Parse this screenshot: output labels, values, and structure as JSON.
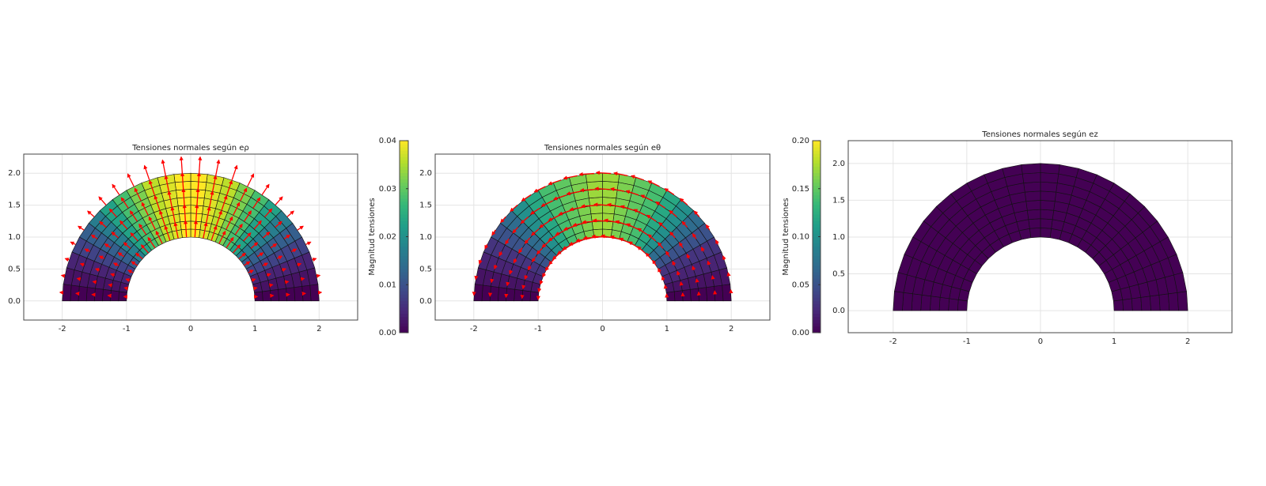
{
  "chart_data": [
    {
      "type": "mesh",
      "title": "Tensiones normales según eρ",
      "xlim": [
        -2.6,
        2.6
      ],
      "ylim": [
        -0.3,
        2.3
      ],
      "xticks": [
        -2,
        -1,
        0,
        1,
        2
      ],
      "yticks": [
        {
          "value": 0,
          "label": "0.0"
        },
        0.5,
        {
          "value": 1,
          "label": "1.0"
        },
        1.5,
        {
          "value": 2,
          "label": "2.0"
        }
      ],
      "grid": true,
      "colormap": "viridis",
      "clim": [
        0,
        0.04
      ],
      "colorbar_label": "Magnitud tensiones",
      "colorbar_ticks": [
        {
          "value": 0,
          "label": "0.00"
        },
        0.01,
        0.02,
        0.03,
        {
          "value": 0.04,
          "label": "0.04"
        }
      ],
      "arrows": "radial",
      "arrow_color": "#ff0000",
      "inner_radius": 1,
      "outer_radius": 2,
      "rings": 8,
      "sector_values": [
        0.0,
        0.002,
        0.004,
        0.008,
        0.012,
        0.017,
        0.023,
        0.028,
        0.032,
        0.036,
        0.038,
        0.04,
        0.04,
        0.038,
        0.036,
        0.032,
        0.028,
        0.023,
        0.017,
        0.012,
        0.008,
        0.004,
        0.002,
        0.0
      ]
    },
    {
      "type": "mesh",
      "title": "Tensiones normales según eθ",
      "xlim": [
        -2.6,
        2.6
      ],
      "ylim": [
        -0.3,
        2.3
      ],
      "xticks": [
        -2,
        -1,
        0,
        1,
        2
      ],
      "yticks": [
        {
          "value": 0,
          "label": "0.0"
        },
        0.5,
        {
          "value": 1,
          "label": "1.0"
        },
        1.5,
        {
          "value": 2,
          "label": "2.0"
        }
      ],
      "grid": true,
      "colormap": "viridis",
      "clim": [
        0,
        0.2
      ],
      "colorbar_label": "Magnitud tensiones",
      "colorbar_ticks": [
        {
          "value": 0,
          "label": "0.00"
        },
        0.05,
        {
          "value": 0.1,
          "label": "0.10"
        },
        0.15,
        {
          "value": 0.2,
          "label": "0.20"
        }
      ],
      "arrows": "tangential",
      "arrow_color": "#ff0000",
      "inner_radius": 1,
      "outer_radius": 2,
      "rings": 8,
      "sector_values": [
        0.0,
        0.01,
        0.02,
        0.03,
        0.05,
        0.07,
        0.1,
        0.12,
        0.14,
        0.15,
        0.16,
        0.17,
        0.17,
        0.16,
        0.15,
        0.14,
        0.12,
        0.1,
        0.07,
        0.05,
        0.03,
        0.02,
        0.01,
        0.0
      ]
    },
    {
      "type": "mesh",
      "title": "Tensiones normales según ez",
      "xlim": [
        -2.61,
        2.6
      ],
      "ylim": [
        -0.3,
        2.31
      ],
      "xticks": [
        -2,
        -1,
        0,
        1,
        2
      ],
      "yticks": [
        {
          "value": 0,
          "label": "0.0"
        },
        0.5,
        {
          "value": 1,
          "label": "1.0"
        },
        1.5,
        {
          "value": 2,
          "label": "2.0"
        }
      ],
      "grid": true,
      "colormap": "viridis",
      "clim": [
        0,
        0.2
      ],
      "inner_radius": 1,
      "outer_radius": 2,
      "rings": 8,
      "sector_values": [
        0,
        0,
        0,
        0,
        0,
        0,
        0,
        0,
        0,
        0,
        0,
        0,
        0,
        0,
        0,
        0,
        0,
        0,
        0,
        0,
        0,
        0,
        0,
        0
      ]
    }
  ]
}
